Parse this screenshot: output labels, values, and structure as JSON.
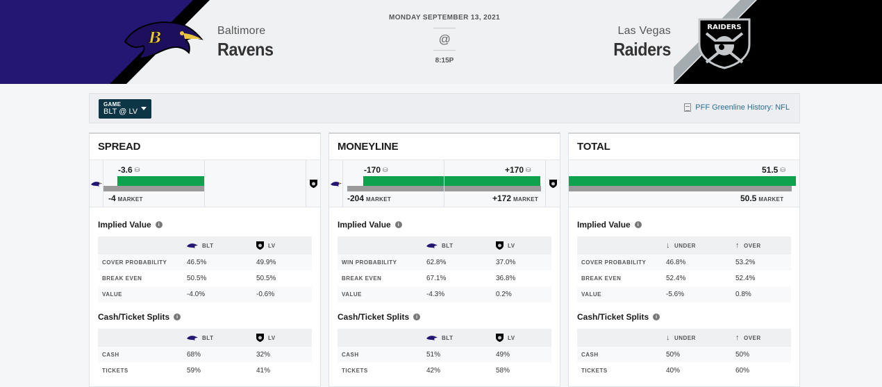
{
  "header": {
    "date": "MONDAY SEPTEMBER 13, 2021",
    "at_symbol": "@",
    "time": "8:15P",
    "away": {
      "city": "Baltimore",
      "name": "Ravens"
    },
    "home": {
      "city": "Las Vegas",
      "name": "Raiders",
      "logo_text": "RAIDERS"
    },
    "colors": {
      "ravens_purple": "#241773",
      "raiders_black": "#000000",
      "raiders_silver": "#a5acaf"
    }
  },
  "filter": {
    "game_label": "GAME",
    "game_value": "BLT @ LV",
    "history_link": "PFF Greenline History: NFL"
  },
  "market_label": "MARKET",
  "cards": {
    "spread": {
      "title": "SPREAD",
      "greenline": "-3.6",
      "market": "-4",
      "implied_title": "Implied Value",
      "implied_headers": [
        "",
        "BLT",
        "LV"
      ],
      "implied_rows": [
        [
          "COVER PROBABILITY",
          "46.5%",
          "49.9%"
        ],
        [
          "BREAK EVEN",
          "50.5%",
          "50.5%"
        ],
        [
          "VALUE",
          "-4.0%",
          "-0.6%"
        ]
      ],
      "splits_title": "Cash/Ticket Splits",
      "splits_headers": [
        "",
        "BLT",
        "LV"
      ],
      "splits_rows": [
        [
          "CASH",
          "68%",
          "32%"
        ],
        [
          "TICKETS",
          "59%",
          "41%"
        ]
      ]
    },
    "moneyline": {
      "title": "MONEYLINE",
      "greenline_away": "-170",
      "greenline_home": "+170",
      "market_away": "-204",
      "market_home": "+172",
      "implied_title": "Implied Value",
      "implied_headers": [
        "",
        "BLT",
        "LV"
      ],
      "implied_rows": [
        [
          "WIN PROBABILITY",
          "62.8%",
          "37.0%"
        ],
        [
          "BREAK EVEN",
          "67.1%",
          "36.8%"
        ],
        [
          "VALUE",
          "-4.3%",
          "0.2%"
        ]
      ],
      "splits_title": "Cash/Ticket Splits",
      "splits_headers": [
        "",
        "BLT",
        "LV"
      ],
      "splits_rows": [
        [
          "CASH",
          "51%",
          "49%"
        ],
        [
          "TICKETS",
          "42%",
          "58%"
        ]
      ]
    },
    "total": {
      "title": "TOTAL",
      "greenline": "51.5",
      "market": "50.5",
      "implied_title": "Implied Value",
      "implied_headers": [
        "",
        "UNDER",
        "OVER"
      ],
      "implied_rows": [
        [
          "COVER PROBABILITY",
          "46.8%",
          "53.2%"
        ],
        [
          "BREAK EVEN",
          "52.4%",
          "52.4%"
        ],
        [
          "VALUE",
          "-5.6%",
          "0.8%"
        ]
      ],
      "splits_title": "Cash/Ticket Splits",
      "splits_headers": [
        "",
        "UNDER",
        "OVER"
      ],
      "splits_rows": [
        [
          "CASH",
          "50%",
          "50%"
        ],
        [
          "TICKETS",
          "40%",
          "60%"
        ]
      ]
    }
  }
}
